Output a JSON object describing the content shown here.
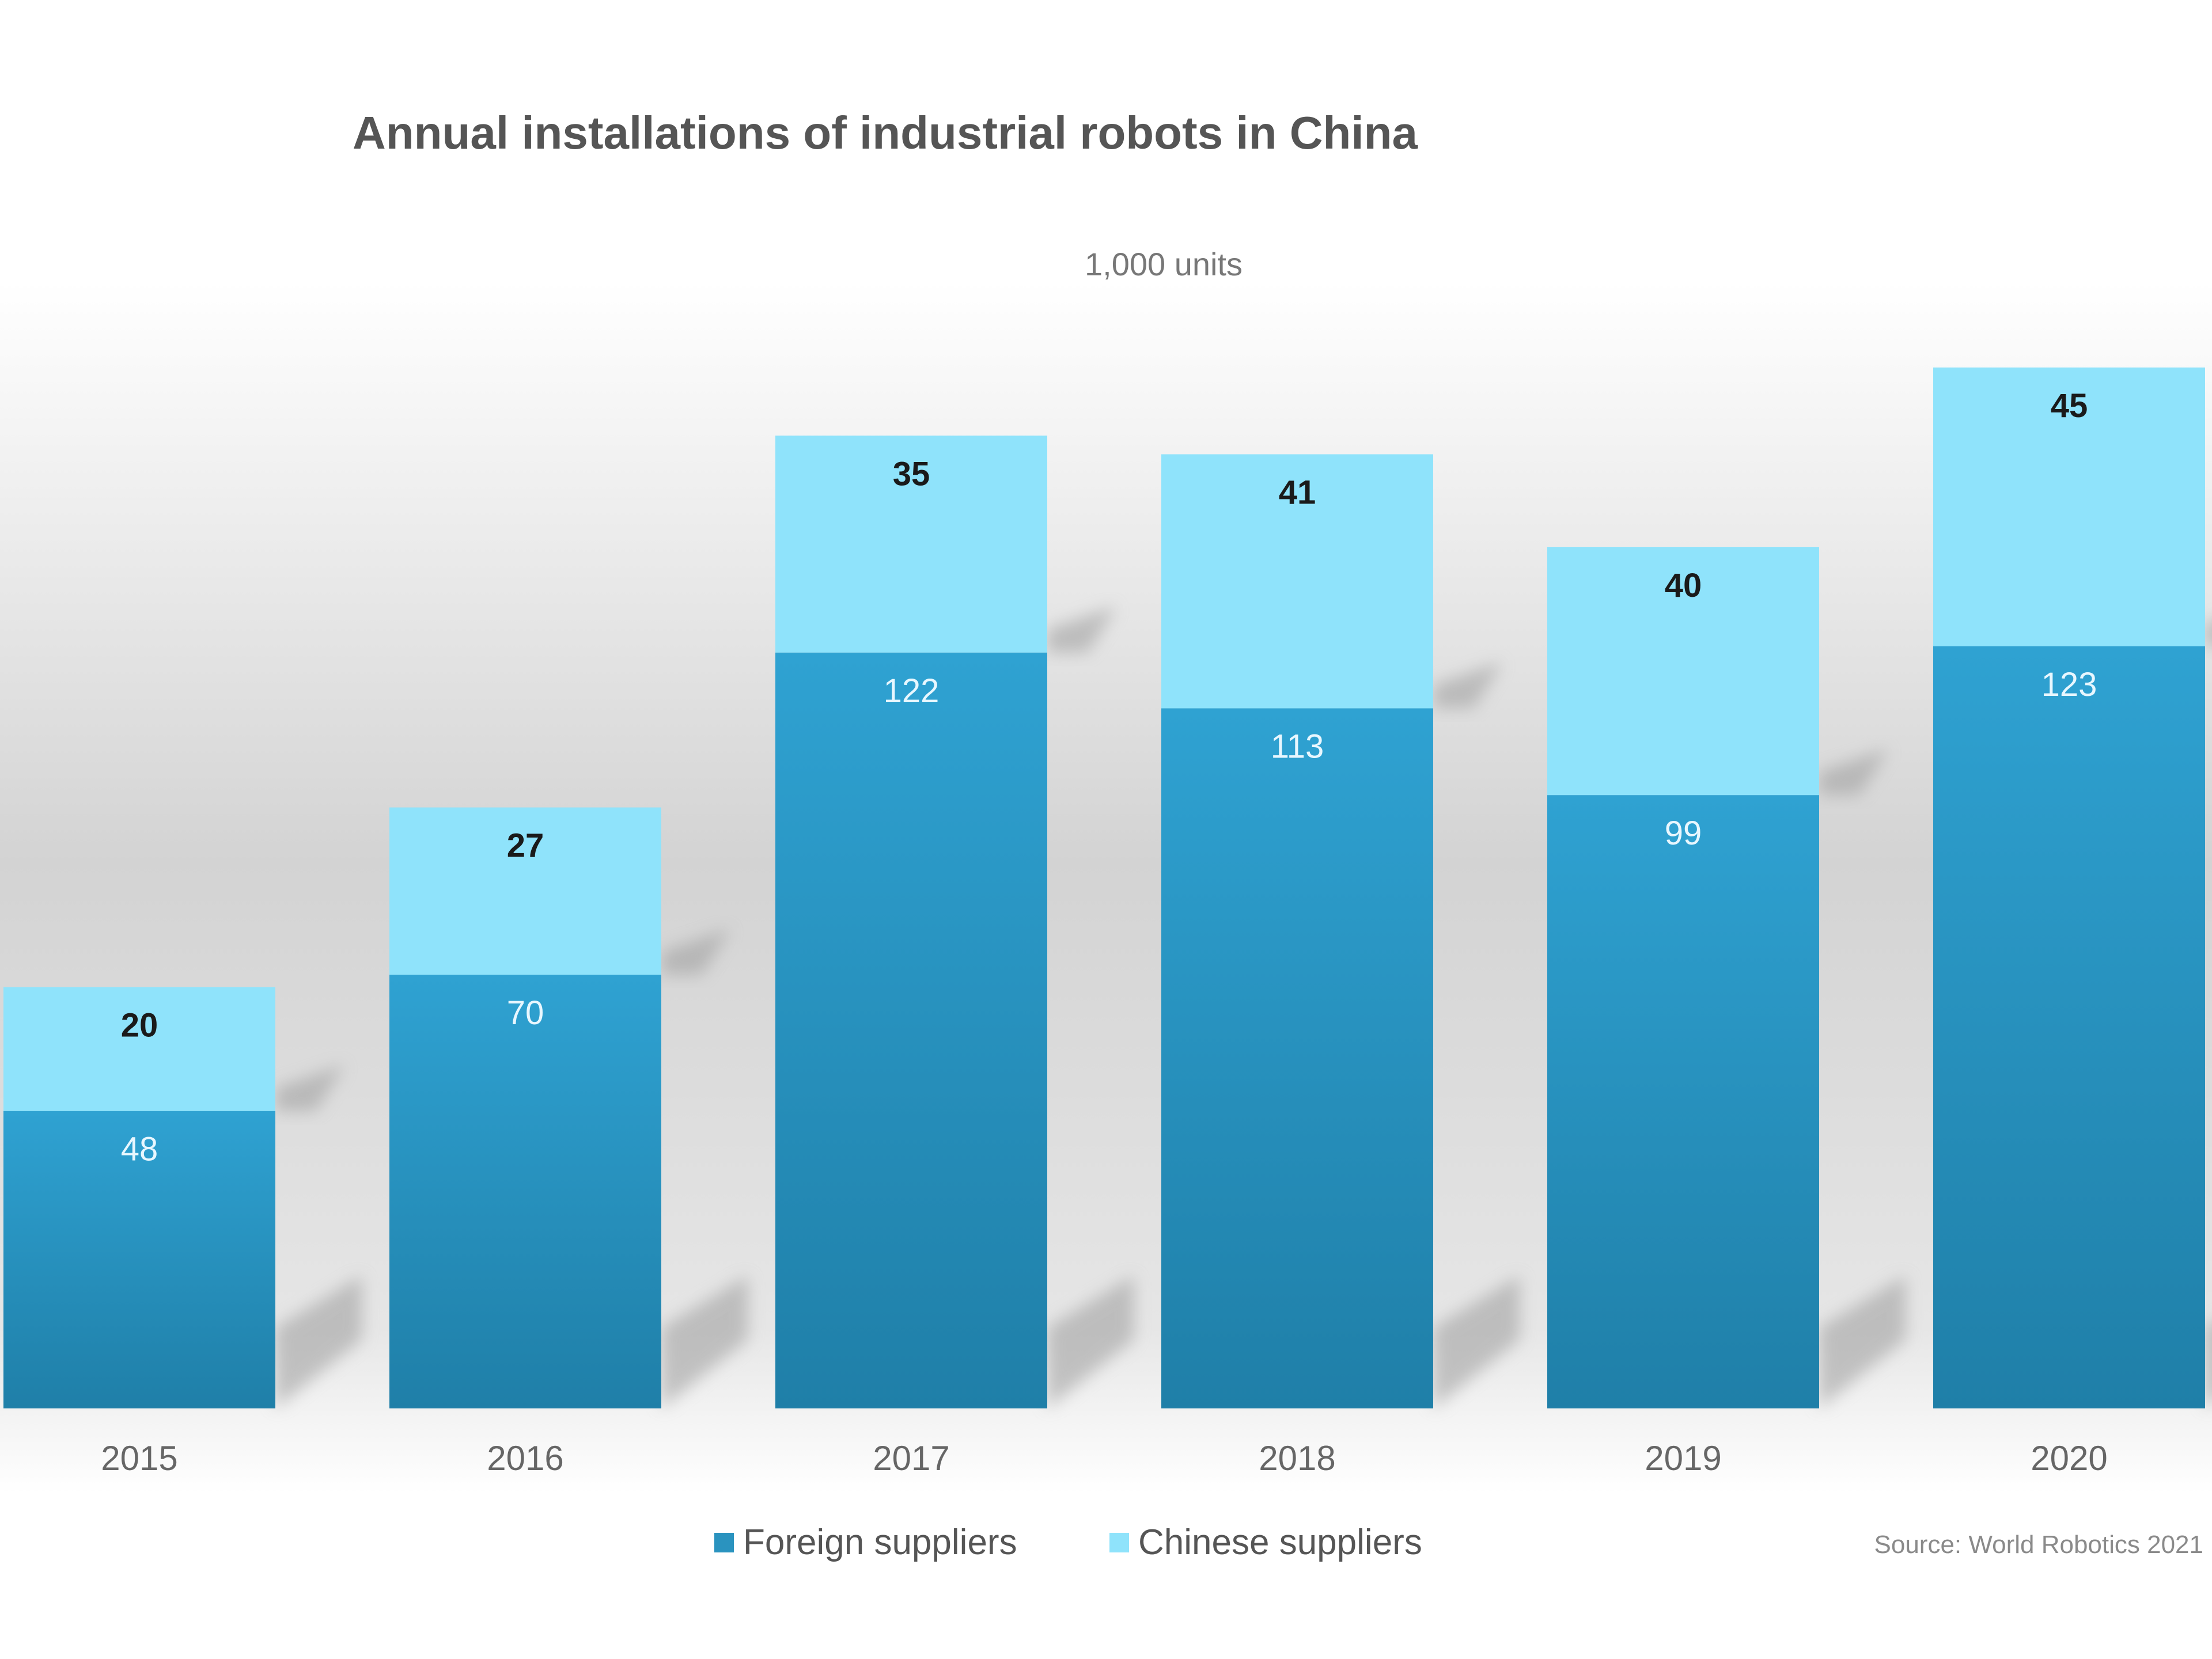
{
  "chart_data": {
    "type": "bar",
    "stacked": true,
    "title": "Annual installations of industrial robots in China",
    "subtitle": "1,000 units",
    "categories": [
      "2015",
      "2016",
      "2017",
      "2018",
      "2019",
      "2020"
    ],
    "series": [
      {
        "name": "Foreign suppliers",
        "values": [
          48,
          70,
          122,
          113,
          99,
          123
        ],
        "color": "#2a93bf"
      },
      {
        "name": "Chinese suppliers",
        "values": [
          20,
          27,
          35,
          41,
          40,
          45
        ],
        "color": "#8fe3fb"
      }
    ],
    "ylim": [
      0,
      168
    ],
    "grid": false,
    "legend_position": "bottom",
    "source": "Source: World Robotics 2021",
    "colors": {
      "foreign_top": "#2fa2d2",
      "foreign_bottom": "#1f7fa8",
      "chinese": "#8fe3fb",
      "background_gray": "#d3d3d3",
      "shadow": "#9c9c9c"
    }
  }
}
